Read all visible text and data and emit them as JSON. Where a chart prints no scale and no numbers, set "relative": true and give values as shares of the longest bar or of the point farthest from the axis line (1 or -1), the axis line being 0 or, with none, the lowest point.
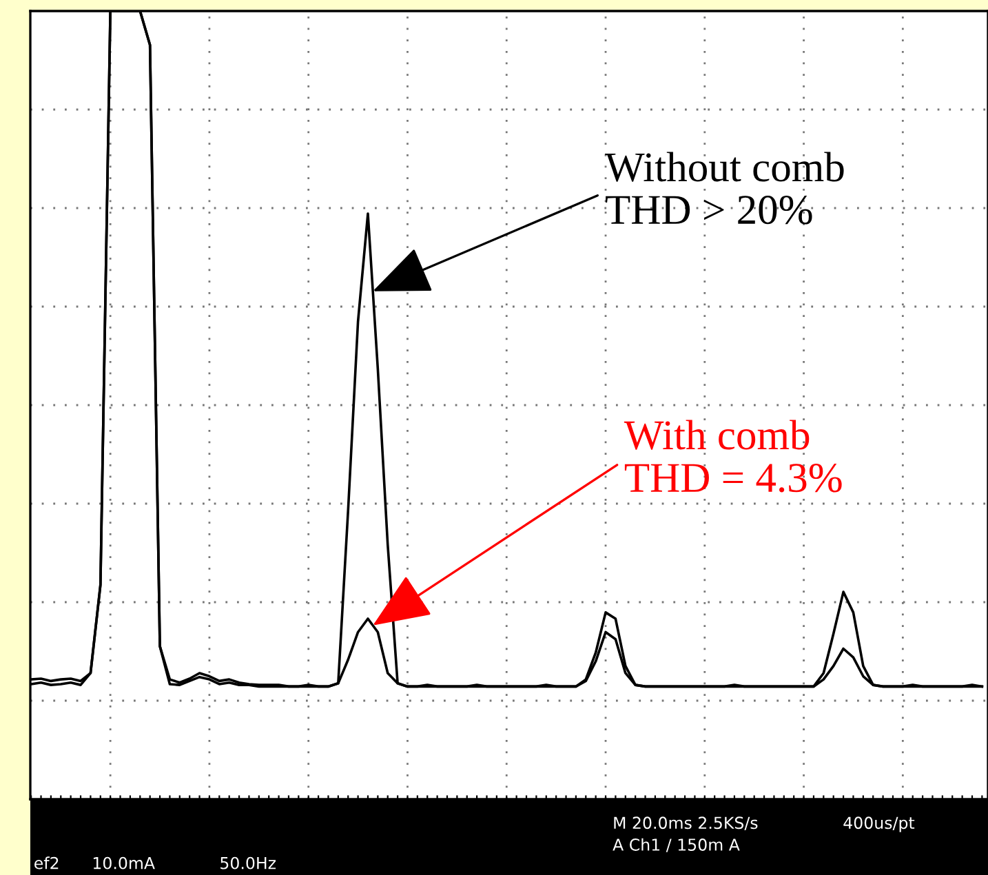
{
  "chart_data": {
    "type": "line",
    "relative": true,
    "grid": true,
    "marker": "none",
    "line_style": "solid",
    "categories": [
      null,
      null,
      null,
      null,
      null,
      null,
      null,
      null,
      null,
      null,
      null,
      null,
      null,
      null,
      null,
      null,
      null,
      null,
      null,
      null,
      null,
      null,
      null,
      null,
      null,
      null,
      null,
      null,
      null,
      null,
      null,
      null,
      null,
      null,
      null,
      null,
      null,
      null,
      null,
      null,
      null,
      null,
      null,
      null,
      null,
      null,
      null,
      null,
      null,
      null,
      null,
      null,
      null,
      null,
      null,
      null,
      null,
      null,
      null,
      null,
      null,
      null,
      null,
      null,
      null,
      null,
      null,
      null,
      null,
      null,
      null,
      null,
      null,
      null,
      null,
      null,
      null,
      null,
      null,
      null,
      null,
      null,
      null,
      null,
      null,
      null,
      null,
      null,
      null,
      null,
      null,
      null,
      null,
      null,
      null,
      null,
      null
    ],
    "series": [
      {
        "color": "#000000",
        "values": [
          0.152,
          0.153,
          0.15,
          0.152,
          0.153,
          0.15,
          0.16,
          0.272,
          1,
          1,
          1,
          1,
          0.957,
          0.194,
          0.152,
          0.148,
          0.153,
          0.16,
          0.156,
          0.15,
          0.152,
          0.148,
          0.146,
          0.145,
          0.145,
          0.145,
          0.143,
          0.143,
          0.145,
          0.143,
          0.143,
          0.147,
          0.366,
          0.606,
          0.743,
          0.546,
          0.323,
          0.147,
          0.143,
          0.143,
          0.145,
          0.143,
          0.143,
          0.143,
          0.143,
          0.145,
          0.143,
          0.143,
          0.143,
          0.143,
          0.143,
          0.143,
          0.145,
          0.143,
          0.143,
          0.143,
          0.152,
          0.186,
          0.237,
          0.229,
          0.169,
          0.145,
          0.143,
          0.143,
          0.143,
          0.143,
          0.143,
          0.143,
          0.143,
          0.143,
          0.143,
          0.145,
          0.143,
          0.143,
          0.143,
          0.143,
          0.143,
          0.143,
          0.143,
          0.143,
          0.16,
          0.21,
          0.263,
          0.237,
          0.169,
          0.145,
          0.143,
          0.143,
          0.143,
          0.145,
          0.143,
          0.143,
          0.143,
          0.143,
          0.143,
          0.145,
          0.143
        ]
      },
      {
        "color": "#000000",
        "values": [
          0.146,
          0.148,
          0.145,
          0.146,
          0.148,
          0.145,
          0.16,
          0.272,
          1,
          1,
          1,
          1,
          0.957,
          0.194,
          0.146,
          0.145,
          0.15,
          0.155,
          0.152,
          0.146,
          0.148,
          0.145,
          0.145,
          0.143,
          0.143,
          0.143,
          0.143,
          0.143,
          0.143,
          0.143,
          0.143,
          0.147,
          0.177,
          0.212,
          0.229,
          0.212,
          0.16,
          0.147,
          0.143,
          0.143,
          0.143,
          0.143,
          0.143,
          0.143,
          0.143,
          0.143,
          0.143,
          0.143,
          0.143,
          0.143,
          0.143,
          0.143,
          0.143,
          0.143,
          0.143,
          0.143,
          0.15,
          0.175,
          0.212,
          0.203,
          0.16,
          0.145,
          0.143,
          0.143,
          0.143,
          0.143,
          0.143,
          0.143,
          0.143,
          0.143,
          0.143,
          0.143,
          0.143,
          0.143,
          0.143,
          0.143,
          0.143,
          0.143,
          0.143,
          0.143,
          0.152,
          0.169,
          0.191,
          0.18,
          0.156,
          0.145,
          0.143,
          0.143,
          0.143,
          0.143,
          0.143,
          0.143,
          0.143,
          0.143,
          0.143,
          0.143,
          0.143
        ]
      }
    ],
    "annotations": [
      "Without comb\nTHD > 20%",
      "With comb\nTHD = 4.3%",
      "ef2",
      "10.0mA",
      "50.0Hz",
      "M 20.0ms 2.5KS/s",
      "400us/pt",
      "A Ch1 / 150m A"
    ]
  }
}
